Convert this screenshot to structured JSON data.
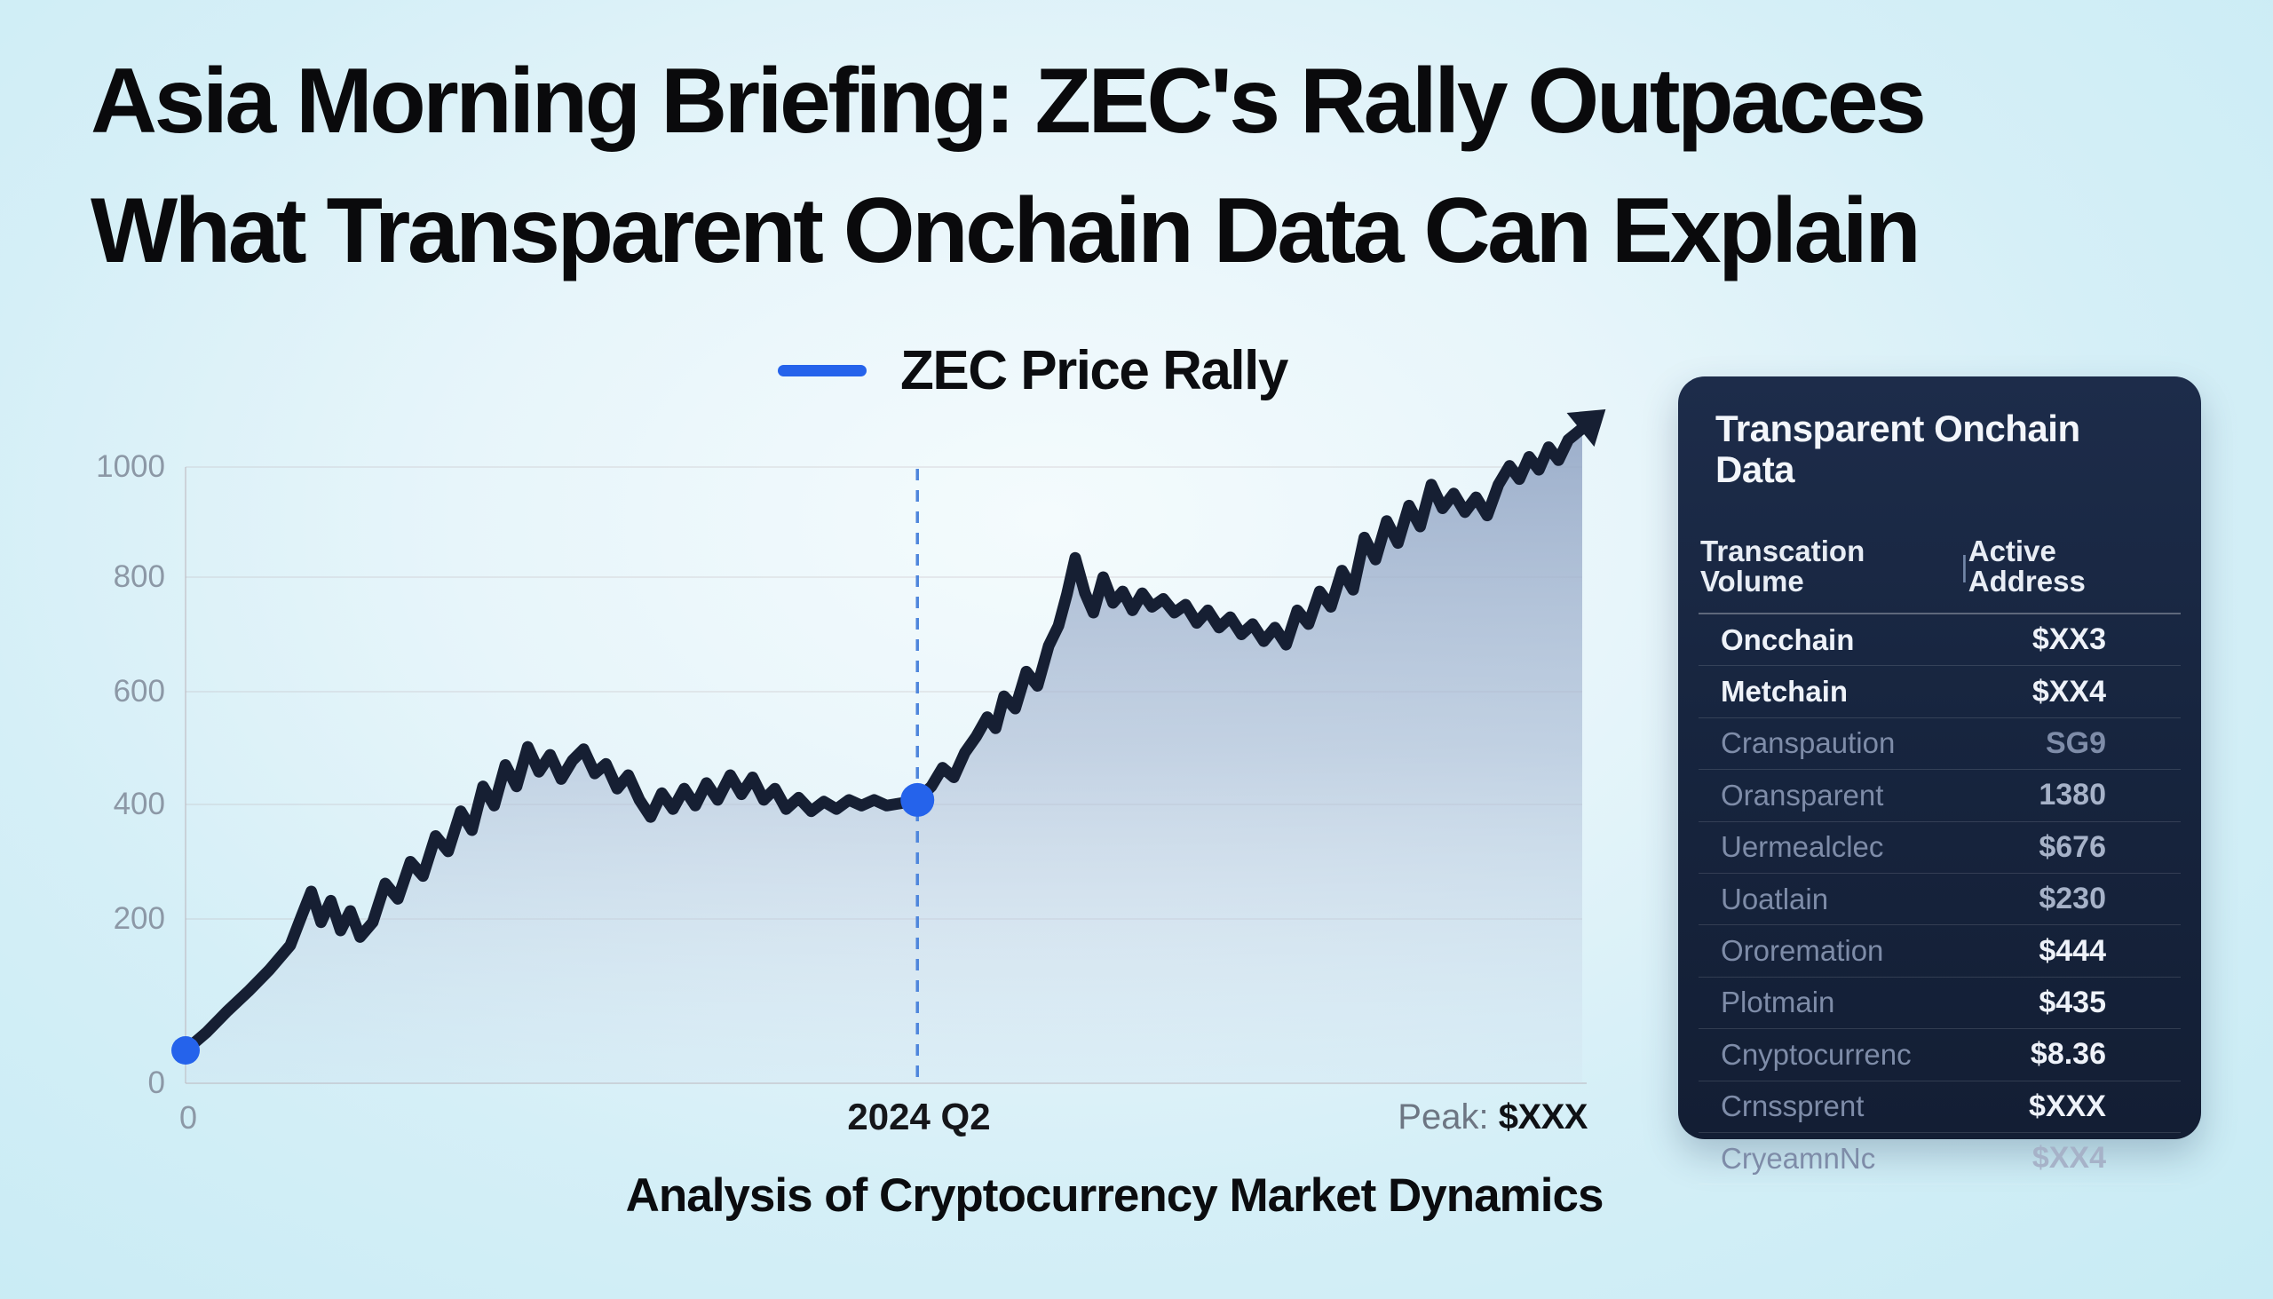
{
  "theme": {
    "accent": "#2563eb",
    "line_color": "#161f33",
    "panel_bg": "#17253f",
    "tone_bright": "#eef2f9",
    "tone_dim": "#7e8ca8",
    "tone_mid": "#a6b2c8",
    "bg_center": "#f4fbfd",
    "bg_edge": "#c7ebf4",
    "grid_color": "#b9aeb4",
    "label_gray": "#8c98a6",
    "dashed_color": "#4f86dc",
    "area_top": "rgba(147,166,197,0.90)",
    "area_mid": "rgba(168,185,211,0.60)",
    "area_bottom": "rgba(208,220,236,0.18)"
  },
  "title": {
    "line1": "Asia Morning Briefing: ZEC's Rally Outpaces",
    "line2": "What Transparent Onchain Data Can Explain"
  },
  "legend": {
    "label": "ZEC Price Rally"
  },
  "caption": "Analysis of Cryptocurrency Market Dynamics",
  "chart_data": {
    "type": "line",
    "title": "ZEC Price Rally",
    "xlabel": "",
    "ylabel": "",
    "ylim": [
      0,
      1100
    ],
    "yticks": [
      1000,
      800,
      600,
      400,
      200,
      0
    ],
    "grid": "horizontal-faint",
    "legend_position": "top-center",
    "x_axis": {
      "origin_label": "0",
      "mid_label": "2024 Q2",
      "peak_prefix": "Peak:",
      "peak_value": "$XXX"
    },
    "annotations": {
      "start_marker": {
        "x": 0,
        "value": 40
      },
      "mid_marker": {
        "x": 52.4,
        "value": 408,
        "label": "2024 Q2"
      },
      "dashed_line_x": 52.4,
      "end_arrow": true
    },
    "series": [
      {
        "name": "ZEC Price Rally",
        "points": [
          [
            0,
            40
          ],
          [
            1.5,
            62
          ],
          [
            3,
            88
          ],
          [
            4.5,
            112
          ],
          [
            6,
            138
          ],
          [
            7.5,
            168
          ],
          [
            8.3,
            205
          ],
          [
            9,
            248
          ],
          [
            9.7,
            196
          ],
          [
            10.4,
            232
          ],
          [
            11.1,
            186
          ],
          [
            11.8,
            214
          ],
          [
            12.5,
            178
          ],
          [
            13.4,
            196
          ],
          [
            14.3,
            262
          ],
          [
            15.2,
            235
          ],
          [
            16.1,
            300
          ],
          [
            17,
            275
          ],
          [
            17.9,
            345
          ],
          [
            18.8,
            318
          ],
          [
            19.7,
            388
          ],
          [
            20.5,
            355
          ],
          [
            21.3,
            432
          ],
          [
            22.1,
            398
          ],
          [
            22.9,
            470
          ],
          [
            23.7,
            432
          ],
          [
            24.5,
            502
          ],
          [
            25.3,
            458
          ],
          [
            26.1,
            488
          ],
          [
            26.9,
            445
          ],
          [
            27.7,
            478
          ],
          [
            28.5,
            498
          ],
          [
            29.3,
            455
          ],
          [
            30.1,
            472
          ],
          [
            30.9,
            428
          ],
          [
            31.7,
            452
          ],
          [
            32.5,
            408
          ],
          [
            33.3,
            378
          ],
          [
            34.1,
            420
          ],
          [
            34.9,
            392
          ],
          [
            35.7,
            428
          ],
          [
            36.5,
            398
          ],
          [
            37.3,
            438
          ],
          [
            38.1,
            408
          ],
          [
            39,
            452
          ],
          [
            39.8,
            418
          ],
          [
            40.6,
            448
          ],
          [
            41.4,
            408
          ],
          [
            42.2,
            428
          ],
          [
            43,
            392
          ],
          [
            43.9,
            412
          ],
          [
            44.8,
            388
          ],
          [
            45.7,
            405
          ],
          [
            46.6,
            392
          ],
          [
            47.5,
            408
          ],
          [
            48.4,
            398
          ],
          [
            49.3,
            408
          ],
          [
            50.2,
            398
          ],
          [
            51.2,
            402
          ],
          [
            52.4,
            408
          ],
          [
            53.4,
            432
          ],
          [
            54.2,
            465
          ],
          [
            55,
            448
          ],
          [
            55.8,
            492
          ],
          [
            56.6,
            520
          ],
          [
            57.4,
            555
          ],
          [
            58,
            535
          ],
          [
            58.6,
            592
          ],
          [
            59.4,
            570
          ],
          [
            60.2,
            635
          ],
          [
            61,
            610
          ],
          [
            61.8,
            680
          ],
          [
            62.5,
            715
          ],
          [
            63.1,
            770
          ],
          [
            63.7,
            835
          ],
          [
            64.4,
            772
          ],
          [
            65,
            738
          ],
          [
            65.7,
            800
          ],
          [
            66.4,
            755
          ],
          [
            67.1,
            775
          ],
          [
            67.8,
            742
          ],
          [
            68.5,
            772
          ],
          [
            69.2,
            748
          ],
          [
            70,
            762
          ],
          [
            70.8,
            738
          ],
          [
            71.6,
            752
          ],
          [
            72.4,
            720
          ],
          [
            73.2,
            742
          ],
          [
            74,
            712
          ],
          [
            74.8,
            730
          ],
          [
            75.6,
            700
          ],
          [
            76.4,
            718
          ],
          [
            77.2,
            688
          ],
          [
            78,
            712
          ],
          [
            78.8,
            682
          ],
          [
            79.6,
            742
          ],
          [
            80.4,
            718
          ],
          [
            81.2,
            775
          ],
          [
            82,
            748
          ],
          [
            82.8,
            812
          ],
          [
            83.6,
            778
          ],
          [
            84.4,
            872
          ],
          [
            85.2,
            832
          ],
          [
            86,
            902
          ],
          [
            86.8,
            862
          ],
          [
            87.6,
            930
          ],
          [
            88.4,
            892
          ],
          [
            89.2,
            968
          ],
          [
            90,
            925
          ],
          [
            90.8,
            952
          ],
          [
            91.6,
            918
          ],
          [
            92.4,
            945
          ],
          [
            93.2,
            912
          ],
          [
            94,
            968
          ],
          [
            94.8,
            1002
          ],
          [
            95.5,
            978
          ],
          [
            96.2,
            1018
          ],
          [
            96.9,
            995
          ],
          [
            97.6,
            1035
          ],
          [
            98.3,
            1012
          ],
          [
            99,
            1048
          ],
          [
            100,
            1068
          ]
        ]
      }
    ]
  },
  "panel": {
    "title": "Transparent Onchain Data",
    "columns": [
      "Transcation Volume",
      "Active Address"
    ],
    "column_divider": "|",
    "rows": [
      {
        "label": "Oncchain",
        "value": "$XX3",
        "label_tone": "bright",
        "value_tone": "bright"
      },
      {
        "label": "Metchain",
        "value": "$XX4",
        "label_tone": "bright",
        "value_tone": "bright"
      },
      {
        "label": "Cranspaution",
        "value": "SG9",
        "label_tone": "dim",
        "value_tone": "dim"
      },
      {
        "label": "Oransparent",
        "value": "1380",
        "label_tone": "dim",
        "value_tone": "mid"
      },
      {
        "label": "Uermealclec",
        "value": "$676",
        "label_tone": "dim",
        "value_tone": "mid"
      },
      {
        "label": "Uoatlain",
        "value": "$230",
        "label_tone": "dim",
        "value_tone": "mid"
      },
      {
        "label": "Ororemation",
        "value": "$444",
        "label_tone": "dim",
        "value_tone": "bright"
      },
      {
        "label": "Plotmain",
        "value": "$435",
        "label_tone": "dim",
        "value_tone": "bright"
      },
      {
        "label": "Cnyptocurrenc",
        "value": "$8.36",
        "label_tone": "dim",
        "value_tone": "bright"
      },
      {
        "label": "Crnssprent",
        "value": "$XXX",
        "label_tone": "dim",
        "value_tone": "bright"
      },
      {
        "label": "CryeamnNc",
        "value": "$XX4",
        "label_tone": "dim",
        "value_tone": "mid"
      }
    ]
  }
}
